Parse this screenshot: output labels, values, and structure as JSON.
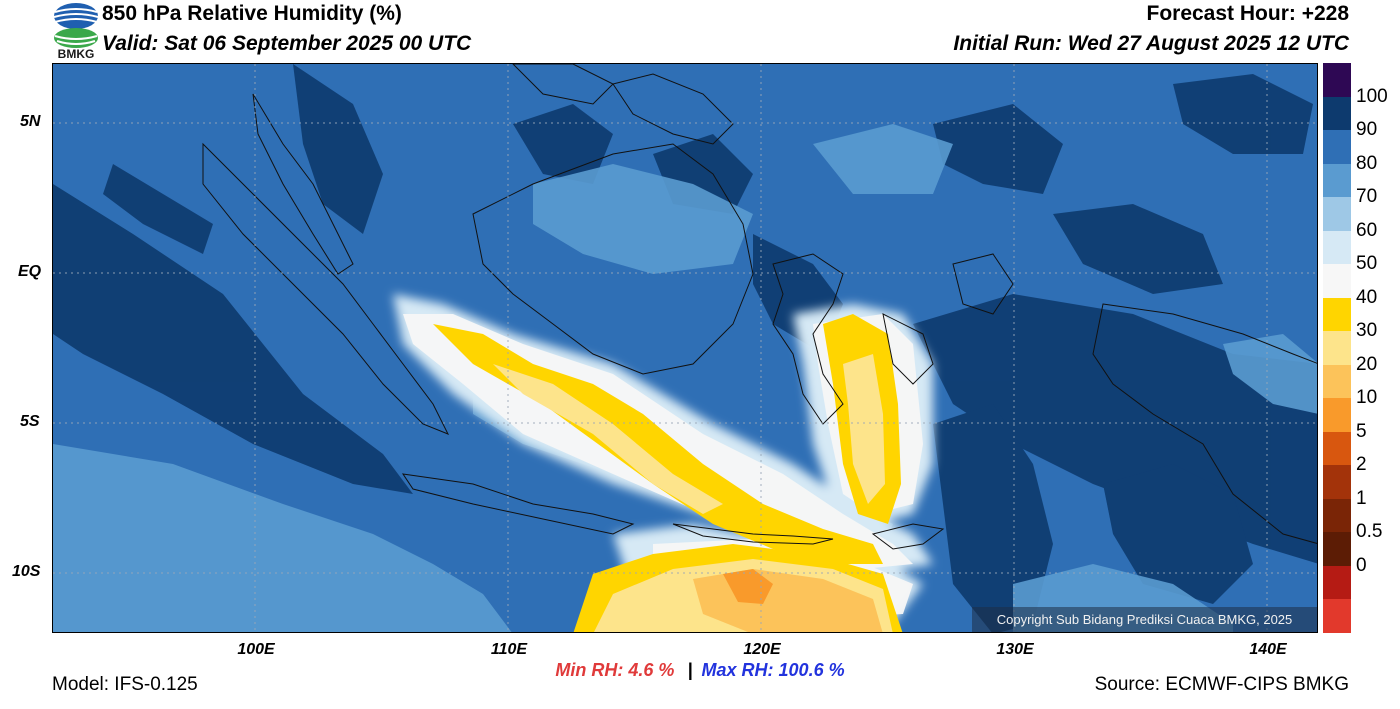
{
  "header": {
    "title": "850 hPa Relative Humidity (%)",
    "valid": "Valid: Sat 06 September 2025 00 UTC",
    "forecast_hour": "Forecast Hour: +228",
    "initial_run": "Initial Run: Wed 27 August 2025 12 UTC",
    "logo_text": "BMKG"
  },
  "map": {
    "lat_labels": [
      "5N",
      "EQ",
      "5S",
      "10S"
    ],
    "lon_labels": [
      "100E",
      "110E",
      "120E",
      "130E",
      "140E"
    ],
    "lat_values": [
      5,
      0,
      -5,
      -10
    ],
    "lon_values": [
      100,
      110,
      120,
      130,
      140
    ],
    "extent": {
      "lon_min": 92,
      "lon_max": 142,
      "lat_min": -12,
      "lat_max": 7
    },
    "copyright": "Copyright Sub Bidang Prediksi Cuaca BMKG, 2025"
  },
  "colorbar": {
    "labels": [
      "100",
      "90",
      "80",
      "70",
      "60",
      "50",
      "40",
      "30",
      "20",
      "10",
      "5",
      "2",
      "1",
      "0.5",
      "0"
    ],
    "colors": [
      "#2e0854",
      "#0d3a6e",
      "#2f6fb5",
      "#5a9bd0",
      "#9ec8e6",
      "#d6e9f5",
      "#f7f7f7",
      "#ffd500",
      "#fde48b",
      "#fcc35a",
      "#f99a2b",
      "#d8570f",
      "#a3330a",
      "#7a2506",
      "#5c1c05",
      "#b51b14",
      "#e2392c"
    ]
  },
  "footer": {
    "model": "Model: IFS-0.125",
    "source": "Source: ECMWF-CIPS BMKG",
    "min_label": "Min RH:",
    "min_value": "4.6 %",
    "separator": "|",
    "max_label": "Max RH:",
    "max_value": "100.6 %"
  },
  "colors": {
    "min_text": "#e03a3a",
    "max_text": "#2233dd"
  }
}
